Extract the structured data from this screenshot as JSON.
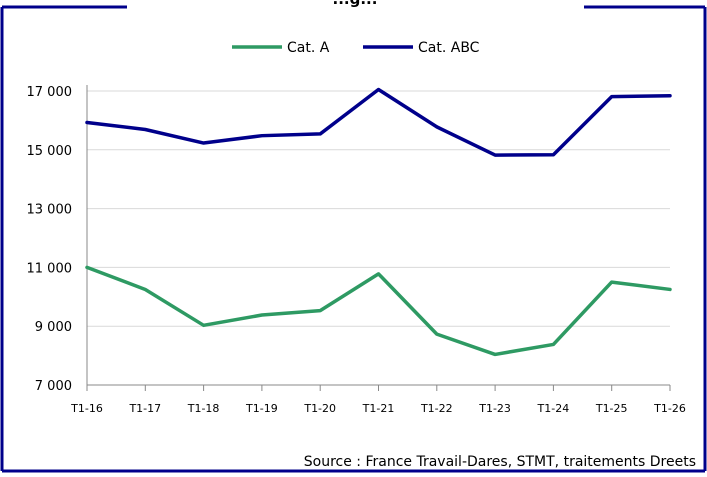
{
  "chart_data": {
    "type": "line",
    "title": "...g...",
    "categories": [
      "T1-16",
      "T1-17",
      "T1-18",
      "T1-19",
      "T1-20",
      "T1-21",
      "T1-22",
      "T1-23",
      "T1-24",
      "T1-25",
      "T1-26"
    ],
    "series": [
      {
        "name": "Cat. A",
        "color": "#2e9a63",
        "values": [
          11000,
          10250,
          9030,
          9380,
          9530,
          10780,
          8730,
          8040,
          8380,
          10500,
          10250
        ]
      },
      {
        "name": "Cat. ABC",
        "color": "#00008b",
        "values": [
          15930,
          15690,
          15230,
          15480,
          15540,
          17050,
          15780,
          14820,
          14830,
          16810,
          16840
        ]
      }
    ],
    "ylim": [
      7000,
      17000
    ],
    "yticks": [
      "7 000",
      "9 000",
      "11 000",
      "13 000",
      "15 000",
      "17 000"
    ],
    "ytick_values": [
      7000,
      9000,
      11000,
      13000,
      15000,
      17000
    ],
    "grid": true,
    "legend_position": "top"
  },
  "source": "Source : France Travail-Dares, STMT, traitements Dreets",
  "colors": {
    "frame": "#00008b",
    "grid": "#d9d9d9",
    "axis": "#888888"
  }
}
